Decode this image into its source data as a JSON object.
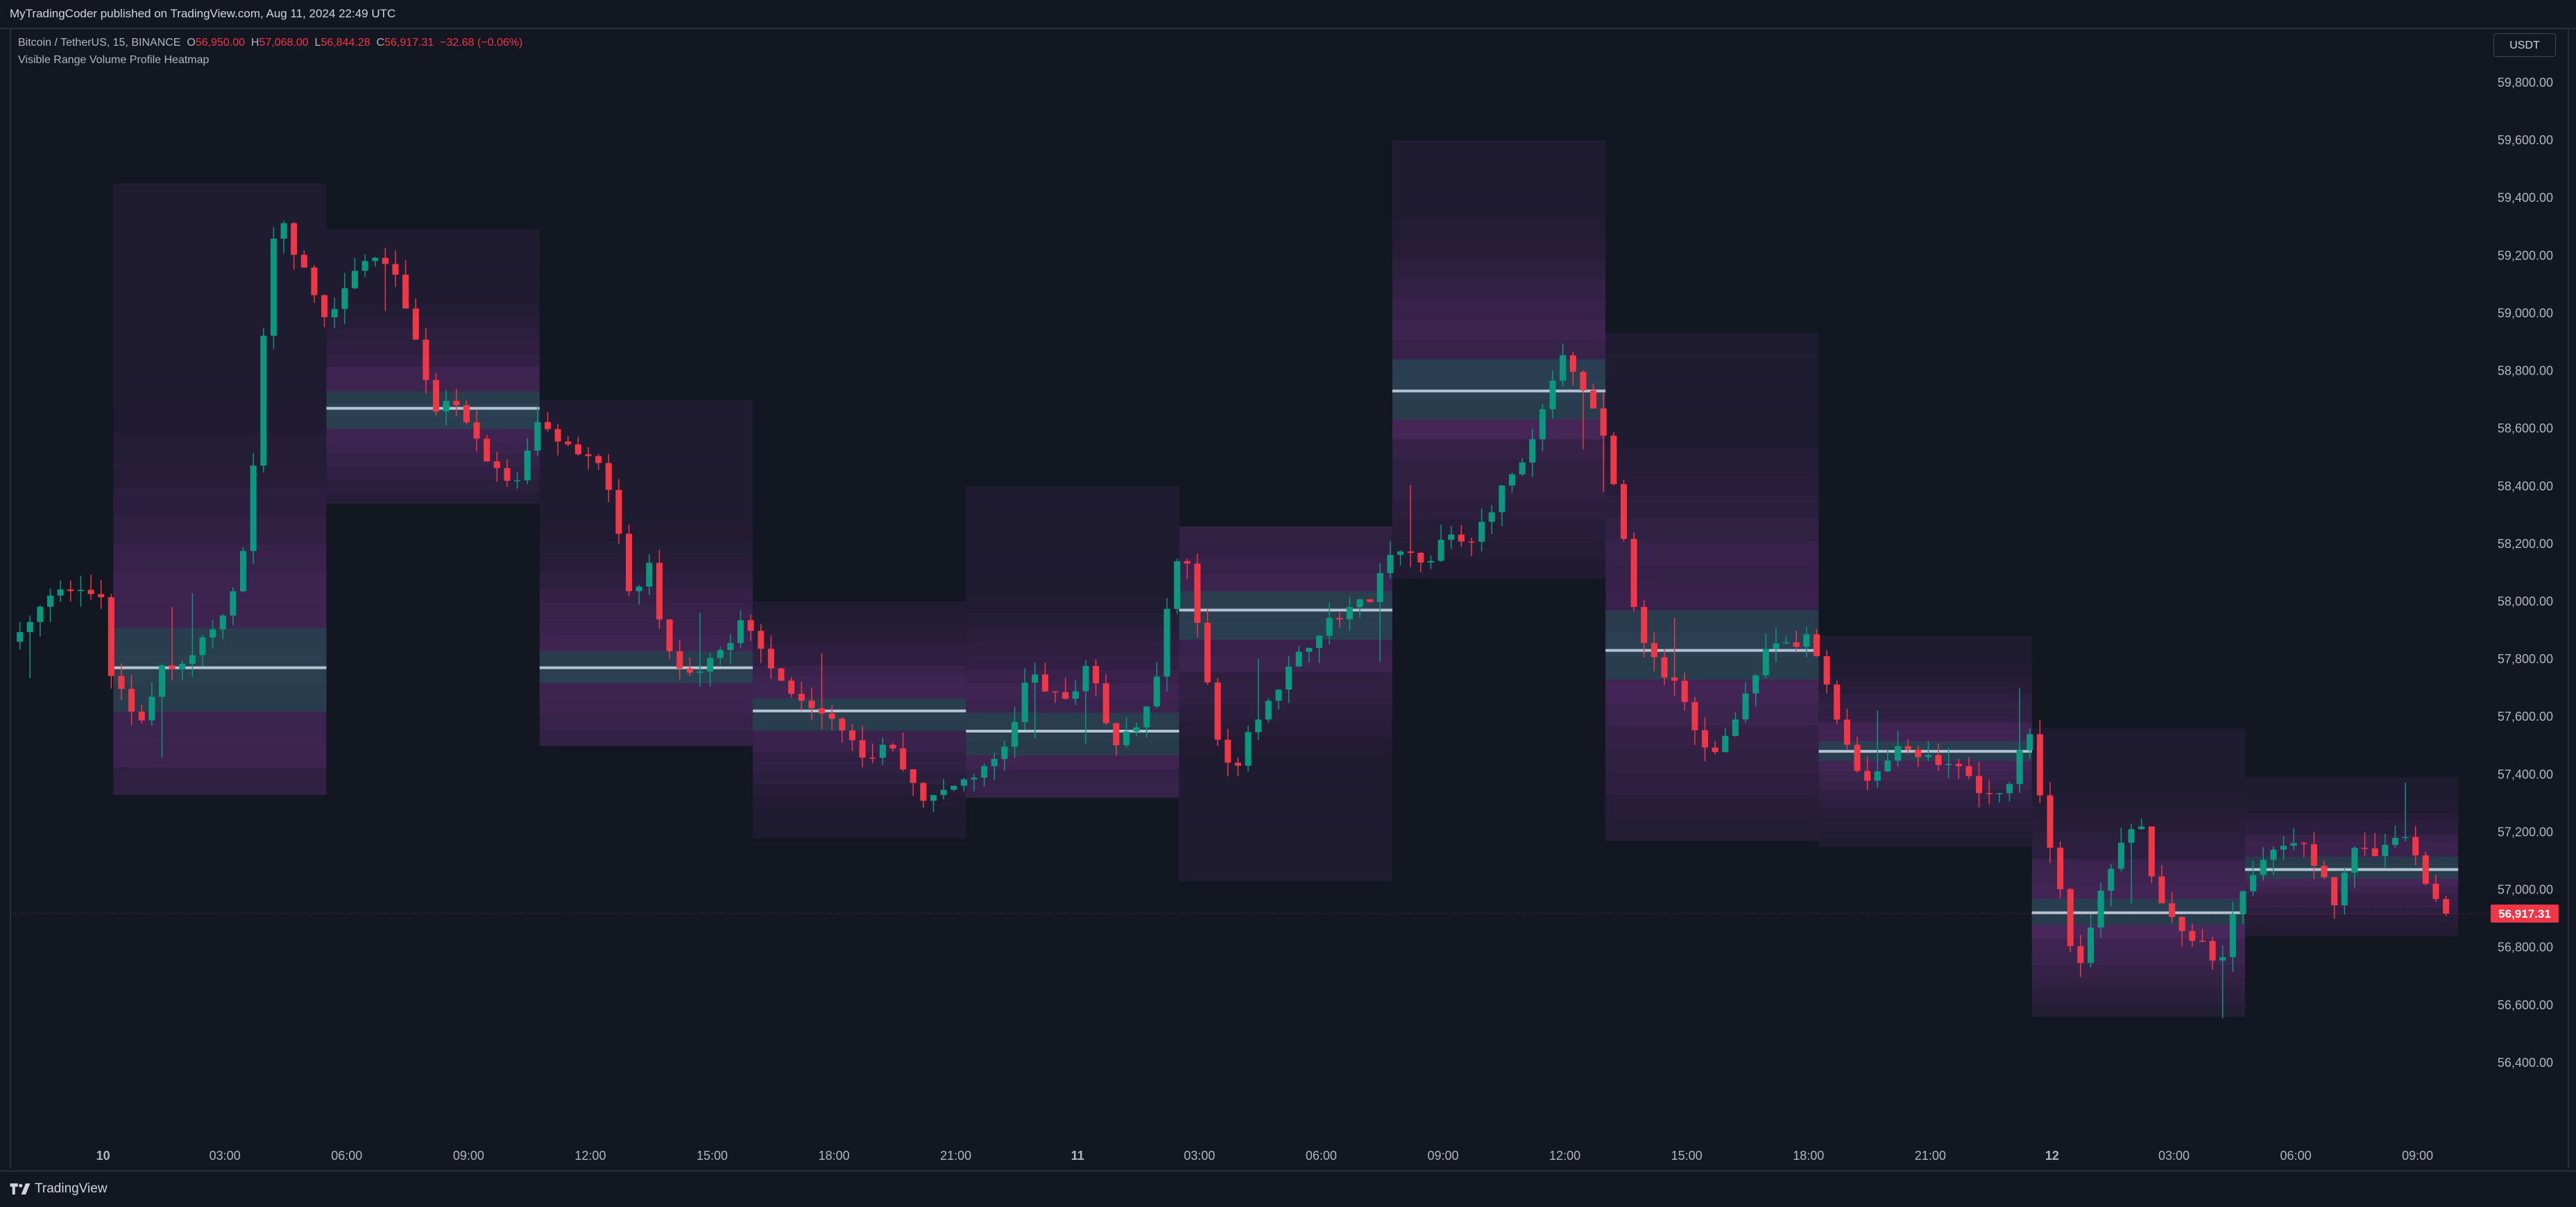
{
  "header": {
    "publish_line": "MyTradingCoder published on TradingView.com, Aug 11, 2024 22:49 UTC"
  },
  "legend": {
    "symbol": "Bitcoin / TetherUS, 15, BINANCE",
    "open_label": "O",
    "open": "56,950.00",
    "high_label": "H",
    "high": "57,068.00",
    "low_label": "L",
    "low": "56,844.28",
    "close_label": "C",
    "close": "56,917.31",
    "change": "−32.68 (−0.06%)",
    "indicator": "Visible Range Volume Profile Heatmap"
  },
  "price_axis": {
    "currency": "USDT",
    "last_price_label": "56,917.31",
    "last_price_value": 56917.31
  },
  "footer": {
    "brand": "TradingView"
  },
  "colors": {
    "background": "#131722",
    "up": "#089981",
    "down": "#f23645",
    "poc_line": "#b2c4d4",
    "heatmap_low": "#2a1f3d",
    "heatmap_high": "#5b2d6e",
    "heatmap_poc": "#2e4a5c"
  },
  "chart_data": {
    "type": "candlestick",
    "title": "Bitcoin / TetherUS, 15, BINANCE",
    "y_ticks": [
      56400,
      56600,
      56800,
      57000,
      57200,
      57400,
      57600,
      57800,
      58000,
      58200,
      58400,
      58600,
      58800,
      59000,
      59200,
      59400,
      59600,
      59800
    ],
    "y_tick_labels": [
      "56,400.00",
      "56,600.00",
      "56,800.00",
      "57,000.00",
      "57,200.00",
      "57,400.00",
      "57,600.00",
      "57,800.00",
      "58,000.00",
      "58,200.00",
      "58,400.00",
      "58,600.00",
      "58,800.00",
      "59,000.00",
      "59,200.00",
      "59,400.00",
      "59,600.00",
      "59,800.00"
    ],
    "ylim": [
      56140,
      59990
    ],
    "x_tick_labels": [
      "10",
      "03:00",
      "06:00",
      "09:00",
      "12:00",
      "15:00",
      "18:00",
      "21:00",
      "11",
      "03:00",
      "06:00",
      "09:00",
      "12:00",
      "15:00",
      "18:00",
      "21:00",
      "12",
      "03:00",
      "06:00",
      "09:00"
    ],
    "x_tick_hours": [
      0,
      3,
      6,
      9,
      12,
      15,
      18,
      21,
      24,
      27,
      30,
      33,
      36,
      39,
      42,
      45,
      48,
      51,
      54,
      57
    ],
    "x_hour_range": [
      -2.3,
      58.8
    ],
    "candle_interval_hours": 0.25,
    "profile_sessions": [
      {
        "start_hour": 0.25,
        "end_hour": 5.5,
        "price_low": 57330,
        "price_high": 59450,
        "poc": 57770
      },
      {
        "start_hour": 5.5,
        "end_hour": 10.75,
        "price_low": 58340,
        "price_high": 59290,
        "poc": 58670
      },
      {
        "start_hour": 10.75,
        "end_hour": 16.0,
        "price_low": 57500,
        "price_high": 58700,
        "poc": 57770
      },
      {
        "start_hour": 16.0,
        "end_hour": 21.25,
        "price_low": 57180,
        "price_high": 58000,
        "poc": 57620
      },
      {
        "start_hour": 21.25,
        "end_hour": 26.5,
        "price_low": 57320,
        "price_high": 58400,
        "poc": 57550
      },
      {
        "start_hour": 26.5,
        "end_hour": 31.75,
        "price_low": 57030,
        "price_high": 58260,
        "poc": 57970
      },
      {
        "start_hour": 31.75,
        "end_hour": 37.0,
        "price_low": 58080,
        "price_high": 59600,
        "poc": 58730
      },
      {
        "start_hour": 37.0,
        "end_hour": 42.25,
        "price_low": 57170,
        "price_high": 58930,
        "poc": 57830
      },
      {
        "start_hour": 42.25,
        "end_hour": 47.5,
        "price_low": 57150,
        "price_high": 57880,
        "poc": 57480
      },
      {
        "start_hour": 47.5,
        "end_hour": 52.75,
        "price_low": 56560,
        "price_high": 57560,
        "poc": 56920
      },
      {
        "start_hour": 52.75,
        "end_hour": 58.0,
        "price_low": 56840,
        "price_high": 57390,
        "poc": 57070
      }
    ],
    "price_path": [
      [
        -2.3,
        57860
      ],
      [
        -1.6,
        57980
      ],
      [
        -1.0,
        58040
      ],
      [
        0.0,
        58020
      ],
      [
        0.2,
        57730
      ],
      [
        0.6,
        57650
      ],
      [
        0.9,
        57560
      ],
      [
        1.4,
        57760
      ],
      [
        2.0,
        57800
      ],
      [
        2.9,
        57930
      ],
      [
        3.4,
        58100
      ],
      [
        3.8,
        58600
      ],
      [
        4.1,
        59210
      ],
      [
        4.4,
        59320
      ],
      [
        4.7,
        59220
      ],
      [
        5.2,
        59060
      ],
      [
        5.6,
        58970
      ],
      [
        6.1,
        59130
      ],
      [
        6.8,
        59220
      ],
      [
        7.2,
        59120
      ],
      [
        7.7,
        58920
      ],
      [
        8.1,
        58660
      ],
      [
        8.6,
        58690
      ],
      [
        9.1,
        58580
      ],
      [
        9.7,
        58450
      ],
      [
        10.2,
        58410
      ],
      [
        10.7,
        58620
      ],
      [
        11.2,
        58570
      ],
      [
        11.8,
        58520
      ],
      [
        12.3,
        58480
      ],
      [
        12.7,
        58220
      ],
      [
        13.0,
        57980
      ],
      [
        13.4,
        58160
      ],
      [
        13.8,
        57880
      ],
      [
        14.3,
        57730
      ],
      [
        14.8,
        57760
      ],
      [
        15.4,
        57860
      ],
      [
        15.8,
        57970
      ],
      [
        16.1,
        57860
      ],
      [
        16.6,
        57730
      ],
      [
        17.2,
        57670
      ],
      [
        17.8,
        57620
      ],
      [
        18.3,
        57560
      ],
      [
        18.8,
        57450
      ],
      [
        19.3,
        57520
      ],
      [
        19.8,
        57400
      ],
      [
        20.3,
        57300
      ],
      [
        20.8,
        57350
      ],
      [
        21.3,
        57390
      ],
      [
        21.8,
        57420
      ],
      [
        22.3,
        57520
      ],
      [
        22.8,
        57760
      ],
      [
        23.3,
        57680
      ],
      [
        23.8,
        57640
      ],
      [
        24.3,
        57820
      ],
      [
        24.6,
        57620
      ],
      [
        24.9,
        57500
      ],
      [
        25.5,
        57560
      ],
      [
        26.0,
        57780
      ],
      [
        26.3,
        58060
      ],
      [
        26.6,
        58240
      ],
      [
        27.0,
        57880
      ],
      [
        27.4,
        57540
      ],
      [
        27.8,
        57400
      ],
      [
        28.4,
        57600
      ],
      [
        28.9,
        57700
      ],
      [
        29.4,
        57800
      ],
      [
        30.0,
        57910
      ],
      [
        30.6,
        57970
      ],
      [
        31.2,
        58010
      ],
      [
        31.6,
        58140
      ],
      [
        32.1,
        58180
      ],
      [
        32.6,
        58110
      ],
      [
        33.1,
        58240
      ],
      [
        33.6,
        58200
      ],
      [
        34.1,
        58300
      ],
      [
        34.6,
        58420
      ],
      [
        35.1,
        58500
      ],
      [
        35.5,
        58680
      ],
      [
        35.9,
        58850
      ],
      [
        36.3,
        58760
      ],
      [
        36.7,
        58660
      ],
      [
        37.0,
        58560
      ],
      [
        37.4,
        58260
      ],
      [
        37.8,
        57870
      ],
      [
        38.3,
        57780
      ],
      [
        38.8,
        57700
      ],
      [
        39.2,
        57540
      ],
      [
        39.6,
        57450
      ],
      [
        40.1,
        57580
      ],
      [
        40.6,
        57720
      ],
      [
        41.1,
        57860
      ],
      [
        41.6,
        57830
      ],
      [
        42.0,
        57880
      ],
      [
        42.4,
        57740
      ],
      [
        42.8,
        57560
      ],
      [
        43.3,
        57380
      ],
      [
        43.8,
        57420
      ],
      [
        44.3,
        57520
      ],
      [
        44.8,
        57460
      ],
      [
        45.3,
        57440
      ],
      [
        45.8,
        57420
      ],
      [
        46.3,
        57320
      ],
      [
        46.8,
        57330
      ],
      [
        47.2,
        57480
      ],
      [
        47.5,
        57560
      ],
      [
        47.8,
        57230
      ],
      [
        48.2,
        56990
      ],
      [
        48.6,
        56680
      ],
      [
        49.1,
        56950
      ],
      [
        49.6,
        57120
      ],
      [
        50.1,
        57270
      ],
      [
        50.5,
        57010
      ],
      [
        50.9,
        56900
      ],
      [
        51.3,
        56850
      ],
      [
        51.8,
        56800
      ],
      [
        52.1,
        56730
      ],
      [
        52.5,
        56950
      ],
      [
        53.0,
        57080
      ],
      [
        53.5,
        57160
      ],
      [
        54.0,
        57180
      ],
      [
        54.5,
        57080
      ],
      [
        55.0,
        56950
      ],
      [
        55.5,
        57180
      ],
      [
        56.0,
        57120
      ],
      [
        56.4,
        57200
      ],
      [
        56.8,
        57180
      ],
      [
        57.2,
        57030
      ],
      [
        57.6,
        56960
      ],
      [
        57.9,
        56917
      ]
    ]
  }
}
